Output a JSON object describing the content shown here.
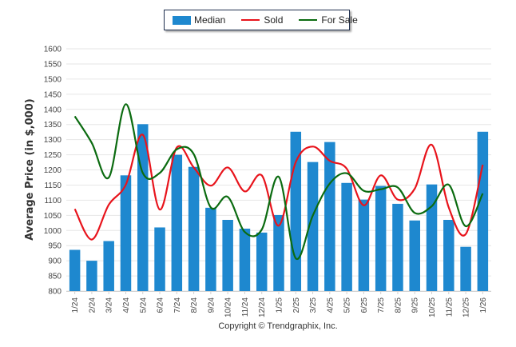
{
  "legend": {
    "items": [
      {
        "label": "Median",
        "kind": "bar",
        "color": "#1e88cf"
      },
      {
        "label": "Sold",
        "kind": "line",
        "color": "#e8141c"
      },
      {
        "label": "For Sale",
        "kind": "line",
        "color": "#0b6b10"
      }
    ]
  },
  "footer": {
    "copyright": "Copyright © Trendgraphix, Inc."
  },
  "chart_data": {
    "type": "bar",
    "title": "",
    "xlabel": "",
    "ylabel": "Average Price (in $,000)",
    "ylim": [
      800,
      1600
    ],
    "yticks": [
      800,
      850,
      900,
      950,
      1000,
      1050,
      1100,
      1150,
      1200,
      1250,
      1300,
      1350,
      1400,
      1450,
      1500,
      1550,
      1600
    ],
    "grid": true,
    "legend_position": "top-center",
    "categories": [
      "1/24",
      "2/24",
      "3/24",
      "4/24",
      "5/24",
      "6/24",
      "7/24",
      "8/24",
      "9/24",
      "10/24",
      "11/24",
      "12/24",
      "1/25",
      "2/25",
      "3/25",
      "4/25",
      "5/25",
      "6/25",
      "7/25",
      "8/25",
      "9/25",
      "10/25",
      "11/25",
      "12/25",
      "1/26"
    ],
    "series": [
      {
        "name": "Median",
        "type": "bar",
        "color": "#1e88cf",
        "values": [
          936,
          900,
          965,
          1182,
          1351,
          1010,
          1250,
          1210,
          1075,
          1035,
          1006,
          993,
          1051,
          1326,
          1226,
          1292,
          1157,
          1102,
          1147,
          1088,
          1033,
          1152,
          1035,
          946,
          1326
        ]
      },
      {
        "name": "Sold",
        "type": "line",
        "color": "#e8141c",
        "values": [
          1071,
          970,
          1085,
          1151,
          1316,
          1069,
          1274,
          1208,
          1148,
          1208,
          1129,
          1182,
          1016,
          1226,
          1277,
          1230,
          1204,
          1083,
          1182,
          1102,
          1138,
          1283,
          1076,
          988,
          1217
        ]
      },
      {
        "name": "For Sale",
        "type": "line",
        "color": "#0b6b10",
        "values": [
          1377,
          1289,
          1175,
          1417,
          1190,
          1190,
          1268,
          1252,
          1076,
          1111,
          995,
          1003,
          1177,
          908,
          1049,
          1155,
          1189,
          1131,
          1136,
          1142,
          1058,
          1080,
          1151,
          1014,
          1122
        ]
      }
    ]
  }
}
